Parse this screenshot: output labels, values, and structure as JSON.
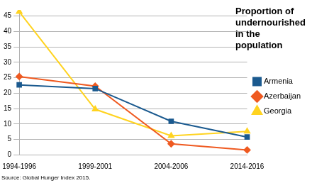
{
  "chart_data": {
    "type": "line",
    "title": "Proportion of undernourished in the population",
    "annotations": [
      "Source: Global Hunger Index 2015."
    ],
    "categories": [
      "1994-1996",
      "1999-2001",
      "2004-2006",
      "2014-2016"
    ],
    "series": [
      {
        "name": "Armenia",
        "color": "#1b5a8f",
        "marker": "square",
        "values": [
          22.7,
          21.5,
          10.9,
          5.8
        ]
      },
      {
        "name": "Azerbaijan",
        "color": "#ef5a21",
        "marker": "diamond",
        "values": [
          25.4,
          22.3,
          3.6,
          1.6
        ]
      },
      {
        "name": "Georgia",
        "color": "#ffd320",
        "marker": "triangle",
        "values": [
          46.4,
          14.8,
          6.2,
          7.6
        ]
      }
    ],
    "ylim": [
      0,
      47
    ],
    "yticks": [
      0,
      5,
      10,
      15,
      20,
      25,
      30,
      35,
      40,
      45
    ],
    "grid": true,
    "legend": "right"
  }
}
